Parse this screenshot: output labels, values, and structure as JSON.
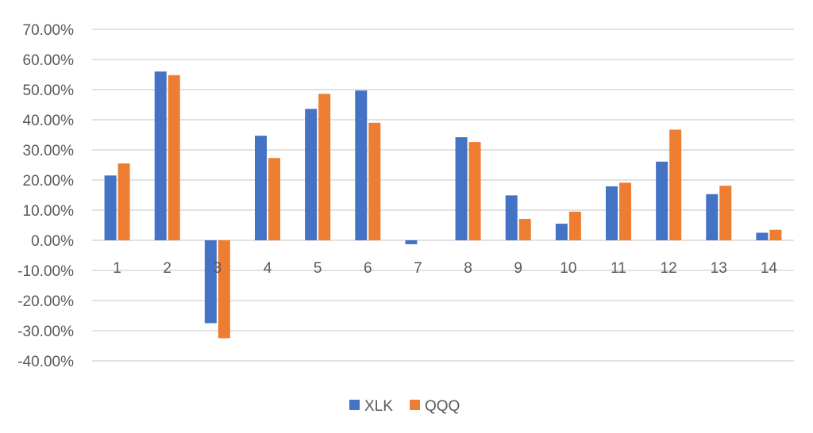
{
  "chart_data": {
    "type": "bar",
    "categories": [
      "1",
      "2",
      "3",
      "4",
      "5",
      "6",
      "7",
      "8",
      "9",
      "10",
      "11",
      "12",
      "13",
      "14"
    ],
    "series": [
      {
        "name": "XLK",
        "color": "#4472C4",
        "values": [
          21.5,
          56.0,
          -27.5,
          34.7,
          43.6,
          49.7,
          -1.3,
          34.2,
          14.9,
          5.5,
          17.9,
          26.1,
          15.3,
          2.5
        ]
      },
      {
        "name": "QQQ",
        "color": "#ED7D31",
        "values": [
          25.5,
          54.8,
          -32.5,
          27.3,
          48.6,
          39.0,
          0,
          32.6,
          7.1,
          9.5,
          19.1,
          36.7,
          18.1,
          3.5
        ]
      }
    ],
    "yticks": [
      "70.00%",
      "60.00%",
      "50.00%",
      "40.00%",
      "30.00%",
      "20.00%",
      "10.00%",
      "0.00%",
      "-10.00%",
      "-20.00%",
      "-30.00%",
      "-40.00%"
    ],
    "ylim": [
      -40,
      70
    ],
    "grid": true,
    "legend": "bottom-center"
  }
}
